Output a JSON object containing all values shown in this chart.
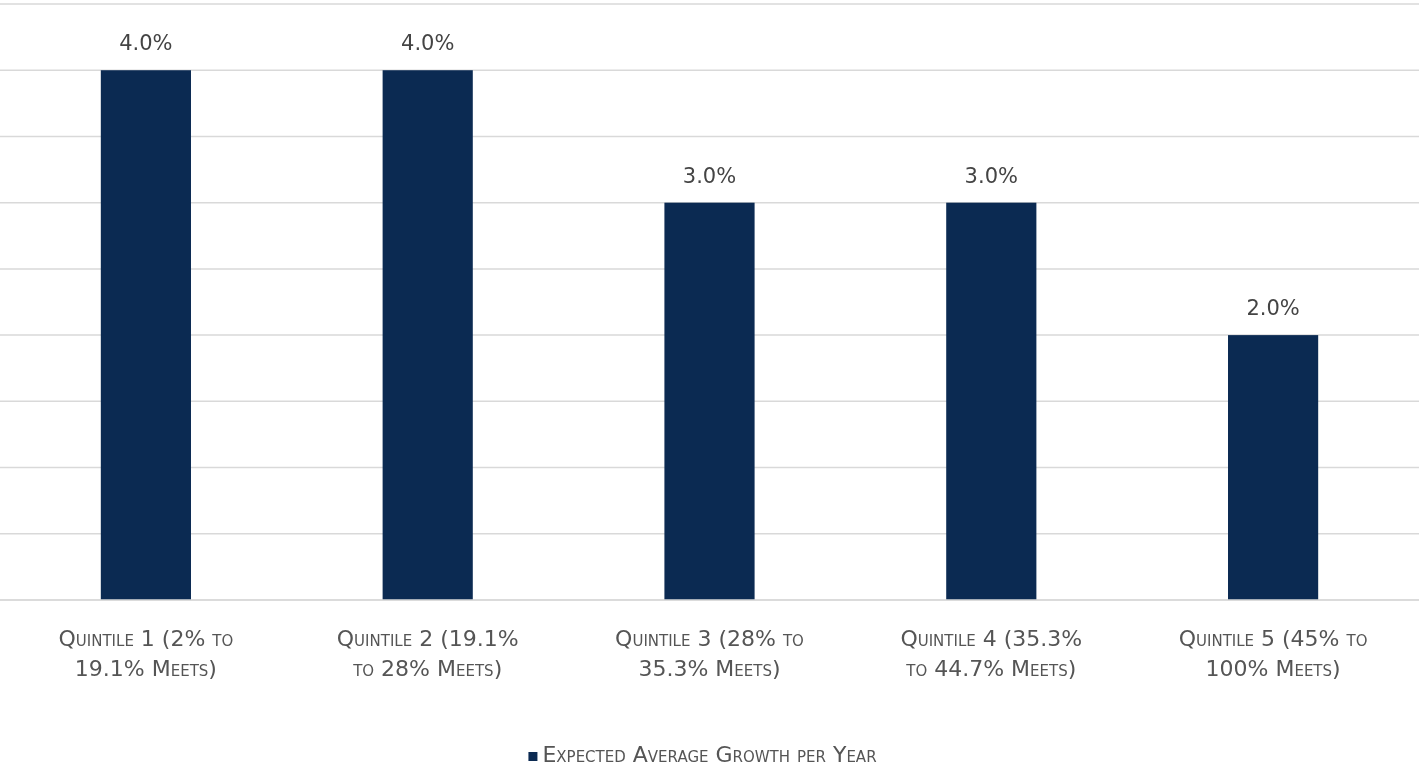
{
  "chart_data": {
    "type": "bar",
    "categories": [
      "Quintile 1 (2% to 19.1% Meets)",
      "Quintile 2 (19.1% to 28% Meets)",
      "Quintile 3 (28% to 35.3% Meets)",
      "Quintile 4 (35.3% to 44.7% Meets)",
      "Quintile 5 (45% to 100% Meets)"
    ],
    "series": [
      {
        "name": "Expected Average Growth per Year",
        "color": "#0b2a52",
        "values": [
          4.0,
          4.0,
          3.0,
          3.0,
          2.0
        ],
        "value_labels": [
          "4.0%",
          "4.0%",
          "3.0%",
          "3.0%",
          "2.0%"
        ]
      }
    ],
    "ylim": [
      0,
      4.5
    ],
    "yticks": [
      {
        "value": 0,
        "label": null
      },
      {
        "value": 0.5,
        "label": null
      },
      {
        "value": 1,
        "label": null
      },
      {
        "value": 1.5,
        "label": null
      },
      {
        "value": 2,
        "label": null
      },
      {
        "value": 2.5,
        "label": null
      },
      {
        "value": 3,
        "label": null
      },
      {
        "value": 3.5,
        "label": null
      },
      {
        "value": 4,
        "label": null
      },
      {
        "value": 4.5,
        "label": null
      }
    ],
    "tick_labels": "x",
    "grid": "y",
    "legend": "bottom"
  }
}
